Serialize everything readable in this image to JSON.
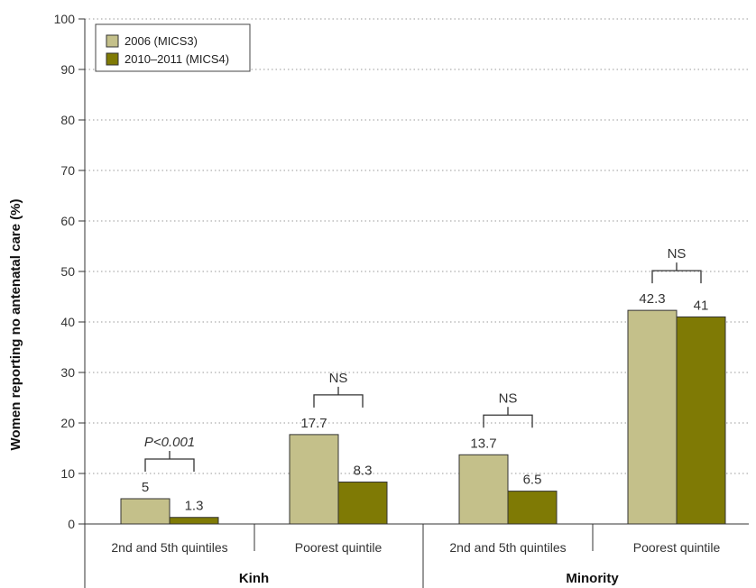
{
  "chart_data": {
    "type": "bar",
    "ylabel": "Women reporting no antenatal care (%)",
    "ylim": [
      0,
      100
    ],
    "yticks": [
      0,
      10,
      20,
      30,
      40,
      50,
      60,
      70,
      80,
      90,
      100
    ],
    "grid": true,
    "legend_position": "top-left",
    "groups": [
      {
        "label": "Kinh",
        "categories": [
          {
            "label": "2nd and 5th quintiles",
            "values": [
              5,
              1.3
            ],
            "value_labels": [
              "5",
              "1.3"
            ],
            "significance": "P<0.001",
            "significance_italic": true
          },
          {
            "label": "Poorest quintile",
            "values": [
              17.7,
              8.3
            ],
            "value_labels": [
              "17.7",
              "8.3"
            ],
            "significance": "NS",
            "significance_italic": false
          }
        ]
      },
      {
        "label": "Minority",
        "categories": [
          {
            "label": "2nd and 5th quintiles",
            "values": [
              13.7,
              6.5
            ],
            "value_labels": [
              "13.7",
              "6.5"
            ],
            "significance": "NS",
            "significance_italic": false
          },
          {
            "label": "Poorest quintile",
            "values": [
              42.3,
              41
            ],
            "value_labels": [
              "42.3",
              "41"
            ],
            "significance": "NS",
            "significance_italic": false
          }
        ]
      }
    ],
    "series": [
      {
        "name": "2006 (MICS3)",
        "color": "#c4c08a"
      },
      {
        "name": "2010–2011 (MICS4)",
        "color": "#7f7a05"
      }
    ]
  }
}
